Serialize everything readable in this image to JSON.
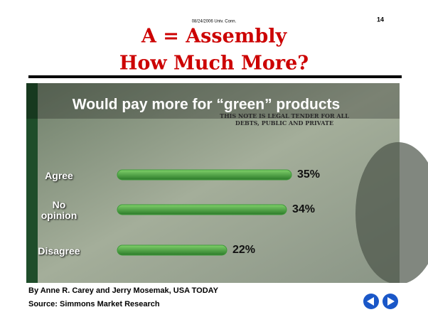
{
  "slide": {
    "date": "08/24/2006 Univ. Conn.",
    "page": "14",
    "title_line1": "A = Assembly",
    "title_line2": "How Much More?"
  },
  "chart_data": {
    "type": "bar",
    "title": "Would pay more for “green” products",
    "categories": [
      "Agree",
      "No opinion",
      "Disagree"
    ],
    "values": [
      35,
      34,
      22
    ],
    "value_labels": [
      "35%",
      "34%",
      "22%"
    ],
    "color": "#3f9a3a",
    "note": "THIS NOTE IS LEGAL TENDER FOR ALL DEBTS, PUBLIC AND PRIVATE",
    "credit": "By Anne R. Carey and Jerry Mosemak, USA TODAY",
    "source": "Source: Simmons Market Research"
  }
}
